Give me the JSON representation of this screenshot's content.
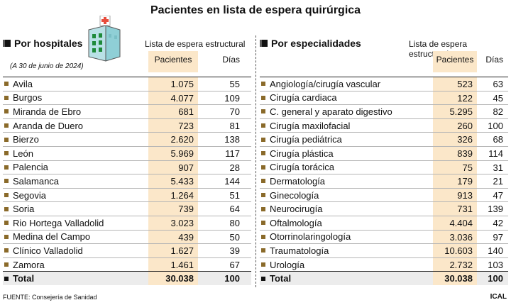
{
  "title": "Pacientes en lista de espera quirúrgica",
  "left": {
    "heading": "Por hospitales",
    "subnote": "(A 30 de junio de 2024)",
    "group_label": "Lista de espera estructural",
    "col_patients": "Pacientes",
    "col_days": "Días",
    "rows": [
      {
        "name": "Avila",
        "patients": "1.075",
        "days": "55"
      },
      {
        "name": "Burgos",
        "patients": "4.077",
        "days": "109"
      },
      {
        "name": "Miranda de Ebro",
        "patients": "681",
        "days": "70"
      },
      {
        "name": "Aranda de Duero",
        "patients": "723",
        "days": "81"
      },
      {
        "name": "Bierzo",
        "patients": "2.620",
        "days": "138"
      },
      {
        "name": "León",
        "patients": "5.969",
        "days": "117"
      },
      {
        "name": "Palencia",
        "patients": "907",
        "days": "28"
      },
      {
        "name": "Salamanca",
        "patients": "5.433",
        "days": "144"
      },
      {
        "name": "Segovia",
        "patients": "1.264",
        "days": "51"
      },
      {
        "name": "Soria",
        "patients": "739",
        "days": "64"
      },
      {
        "name": "Rio Hortega Valladolid",
        "patients": "3.023",
        "days": "80"
      },
      {
        "name": "Medina del Campo",
        "patients": "439",
        "days": "50"
      },
      {
        "name": "Clínico Valladolid",
        "patients": "1.627",
        "days": "39"
      },
      {
        "name": "Zamora",
        "patients": "1.461",
        "days": "67"
      }
    ],
    "total": {
      "name": "Total",
      "patients": "30.038",
      "days": "100"
    }
  },
  "right": {
    "heading": "Por especialidades",
    "group_label": "Lista de espera estructural",
    "col_patients": "Pacientes",
    "col_days": "Días",
    "rows": [
      {
        "name": "Angiología/cirugía vascular",
        "patients": "523",
        "days": "63"
      },
      {
        "name": "Cirugía cardiaca",
        "patients": "122",
        "days": "45"
      },
      {
        "name": "C. general y aparato digestivo",
        "patients": "5.295",
        "days": "82"
      },
      {
        "name": "Cirugía maxilofacial",
        "patients": "260",
        "days": "100"
      },
      {
        "name": "Cirugía pediátrica",
        "patients": "326",
        "days": "68"
      },
      {
        "name": "Cirugía plástica",
        "patients": "839",
        "days": "114"
      },
      {
        "name": "Cirugía torácica",
        "patients": "75",
        "days": "31"
      },
      {
        "name": "Dermatología",
        "patients": "179",
        "days": "21"
      },
      {
        "name": "Ginecología",
        "patients": "913",
        "days": "47"
      },
      {
        "name": "Neurocirugía",
        "patients": "731",
        "days": "139"
      },
      {
        "name": "Oftalmología",
        "patients": "4.404",
        "days": "42"
      },
      {
        "name": "Otorrinolaringología",
        "patients": "3.036",
        "days": "97"
      },
      {
        "name": "Traumatología",
        "patients": "10.603",
        "days": "140"
      },
      {
        "name": "Urología",
        "patients": "2.732",
        "days": "103"
      }
    ],
    "total": {
      "name": "Total",
      "patients": "30.038",
      "days": "100"
    }
  },
  "footer": "FUENTE: Consejería de Sanidad",
  "brand": "ICAL"
}
